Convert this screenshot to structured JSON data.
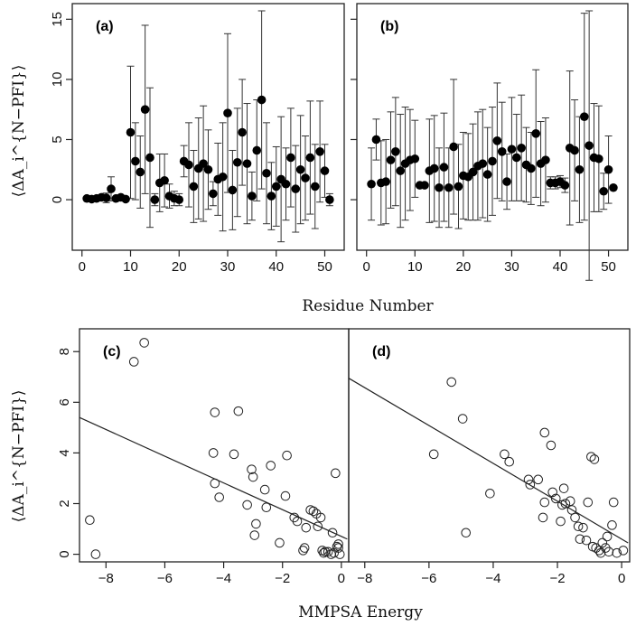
{
  "figure": {
    "top_xlabel": "Residue Number",
    "bottom_xlabel": "MMPSA Energy",
    "ylabel": "⟨ΔA_i^{N−PFI}⟩"
  },
  "chart_data": [
    {
      "type": "scatter",
      "panel": "(a)",
      "xlabel": "Residue Number",
      "ylabel": "⟨ΔA_i^{N−PFI}⟩",
      "xlim": [
        -2,
        54
      ],
      "ylim": [
        -4.2,
        16.3
      ],
      "xticks": [
        0,
        10,
        20,
        30,
        40,
        50
      ],
      "yticks": [
        0,
        5,
        10,
        15
      ],
      "error_bars": true,
      "x": [
        1,
        2,
        3,
        4,
        5,
        6,
        7,
        8,
        9,
        10,
        11,
        12,
        13,
        14,
        15,
        16,
        17,
        18,
        19,
        20,
        21,
        22,
        23,
        24,
        25,
        26,
        27,
        28,
        29,
        30,
        31,
        32,
        33,
        34,
        35,
        36,
        37,
        38,
        39,
        40,
        41,
        42,
        43,
        44,
        45,
        46,
        47,
        48,
        49,
        50,
        51
      ],
      "y": [
        0.1,
        0.05,
        0.1,
        0.2,
        0.15,
        0.9,
        0.1,
        0.2,
        0.05,
        5.6,
        3.2,
        2.3,
        7.5,
        3.5,
        0,
        1.4,
        1.6,
        0.3,
        0.1,
        0,
        3.2,
        2.9,
        1.1,
        2.6,
        3,
        2.5,
        0.5,
        1.7,
        1.9,
        7.2,
        0.8,
        3.1,
        5.6,
        3,
        0.3,
        4.1,
        8.3,
        2.2,
        0.3,
        1.1,
        1.7,
        1.3,
        3.5,
        0.9,
        2.5,
        1.8,
        3.5,
        1.1,
        4,
        2.4,
        0
      ],
      "err": [
        0.2,
        0.2,
        0.3,
        0.3,
        0.4,
        1,
        0.3,
        0.3,
        0.2,
        5.5,
        3.2,
        3,
        7,
        5.8,
        0.5,
        2.4,
        2.2,
        1,
        0.6,
        0.5,
        1.3,
        3.5,
        3,
        4.2,
        4.8,
        3.3,
        1,
        3,
        4.5,
        6.6,
        3.3,
        4.5,
        4.4,
        5,
        2,
        4.2,
        7.4,
        4.2,
        2.8,
        3.3,
        5.2,
        3,
        4.1,
        3.6,
        4.5,
        3.5,
        4.7,
        3.5,
        4.2,
        2.2,
        0.5
      ]
    },
    {
      "type": "scatter",
      "panel": "(b)",
      "xlabel": "Residue Number",
      "xlim": [
        -2,
        54
      ],
      "ylim": [
        -4.2,
        16.3
      ],
      "xticks": [
        0,
        10,
        20,
        30,
        40,
        50
      ],
      "error_bars": true,
      "x": [
        1,
        2,
        3,
        4,
        5,
        6,
        7,
        8,
        9,
        10,
        11,
        12,
        13,
        14,
        15,
        16,
        17,
        18,
        19,
        20,
        21,
        22,
        23,
        24,
        25,
        26,
        27,
        28,
        29,
        30,
        31,
        32,
        33,
        34,
        35,
        36,
        37,
        38,
        39,
        40,
        41,
        42,
        43,
        44,
        45,
        46,
        47,
        48,
        49,
        50,
        51
      ],
      "y": [
        1.3,
        5,
        1.4,
        1.5,
        3.3,
        4,
        2.4,
        3,
        3.3,
        3.4,
        1.2,
        1.2,
        2.4,
        2.6,
        1,
        2.7,
        1,
        4.4,
        1.1,
        2,
        1.9,
        2.3,
        2.8,
        3,
        2.1,
        3.2,
        4.9,
        4,
        1.5,
        4.2,
        3.5,
        4.3,
        2.9,
        2.6,
        5.5,
        3,
        3.3,
        1.4,
        1.4,
        1.5,
        1.2,
        4.3,
        4.1,
        2.5,
        6.9,
        4.5,
        3.5,
        3.4,
        0.7,
        2.5,
        1
      ],
      "err": [
        3,
        1.7,
        3.5,
        3.5,
        4,
        4.5,
        4.7,
        4.7,
        4.2,
        3.2,
        0.3,
        0.3,
        4.3,
        4.4,
        3.3,
        4.5,
        3.3,
        5.6,
        3.5,
        3.6,
        3.6,
        4,
        4.5,
        4.5,
        3.9,
        4.5,
        4.8,
        4.1,
        2.3,
        4.3,
        3.6,
        4.4,
        3.1,
        3,
        5.3,
        3.5,
        3.5,
        0.5,
        0.5,
        0.5,
        0.6,
        6.4,
        4.2,
        4.4,
        8.6,
        11.2,
        4.5,
        4.4,
        1.5,
        2.8,
        0.2
      ]
    },
    {
      "type": "scatter",
      "panel": "(c)",
      "xlabel": "MMPSA Energy",
      "ylabel": "⟨ΔA_i^{N−PFI}⟩",
      "xlim": [
        -8.9,
        0.25
      ],
      "ylim": [
        -0.3,
        8.9
      ],
      "xticks": [
        -8,
        -6,
        -4,
        -2,
        0
      ],
      "yticks": [
        0,
        2,
        4,
        6,
        8
      ],
      "fit_line": [
        [
          -8.9,
          5.4
        ],
        [
          0.2,
          0.6
        ]
      ],
      "x": [
        -8.55,
        -8.35,
        -7.05,
        -6.7,
        -4.3,
        -4.35,
        -4.3,
        -4.15,
        -3.65,
        -3.5,
        -3.2,
        -3.05,
        -3.0,
        -2.9,
        -2.95,
        -2.6,
        -2.55,
        -2.4,
        -2.1,
        -1.9,
        -1.85,
        -1.6,
        -1.5,
        -1.3,
        -1.25,
        -1.2,
        -1.05,
        -0.95,
        -0.85,
        -0.8,
        -0.7,
        -0.65,
        -0.6,
        -0.55,
        -0.45,
        -0.35,
        -0.3,
        -0.2,
        -0.15,
        -0.1,
        -0.05,
        -0.1,
        -0.25
      ],
      "y": [
        1.35,
        0,
        7.6,
        8.35,
        5.6,
        4,
        2.8,
        2.25,
        3.95,
        5.65,
        1.95,
        3.35,
        3.05,
        1.2,
        0.75,
        2.55,
        1.85,
        3.5,
        0.45,
        2.3,
        3.9,
        1.45,
        1.3,
        0.15,
        0.25,
        1.05,
        1.75,
        1.7,
        1.6,
        1.1,
        1.45,
        0.15,
        0.05,
        0.1,
        0.1,
        0,
        0.85,
        3.2,
        0.3,
        0.25,
        0,
        0.4,
        0.05
      ]
    },
    {
      "type": "scatter",
      "panel": "(d)",
      "xlabel": "MMPSA Energy",
      "xlim": [
        -8.5,
        0.25
      ],
      "ylim": [
        -0.3,
        8.9
      ],
      "xticks": [
        -8,
        -6,
        -4,
        -2,
        0
      ],
      "fit_line": [
        [
          -8.5,
          6.95
        ],
        [
          0.2,
          0.45
        ]
      ],
      "x": [
        -5.85,
        -5.3,
        -4.95,
        -4.85,
        -4.1,
        -3.65,
        -3.5,
        -2.9,
        -2.85,
        -2.6,
        -2.45,
        -2.4,
        -2.4,
        -2.2,
        -2.15,
        -2.05,
        -1.9,
        -1.85,
        -1.8,
        -1.75,
        -1.6,
        -1.55,
        -1.45,
        -1.35,
        -1.3,
        -1.2,
        -1.1,
        -1.05,
        -0.95,
        -0.9,
        -0.85,
        -0.8,
        -0.7,
        -0.65,
        -0.6,
        -0.5,
        -0.45,
        -0.4,
        -0.3,
        -0.25,
        -0.15,
        0.05
      ],
      "y": [
        3.95,
        6.8,
        5.35,
        0.85,
        2.4,
        3.95,
        3.65,
        2.95,
        2.75,
        2.95,
        1.45,
        4.8,
        2.05,
        4.3,
        2.45,
        2.2,
        1.3,
        1.95,
        2.6,
        2.0,
        2.1,
        1.75,
        1.45,
        1.1,
        0.6,
        1.05,
        0.55,
        2.05,
        3.85,
        0.3,
        3.75,
        0.25,
        0.15,
        0.05,
        0.45,
        0.25,
        0.7,
        0.1,
        1.15,
        2.05,
        0.05,
        0.15
      ]
    }
  ]
}
